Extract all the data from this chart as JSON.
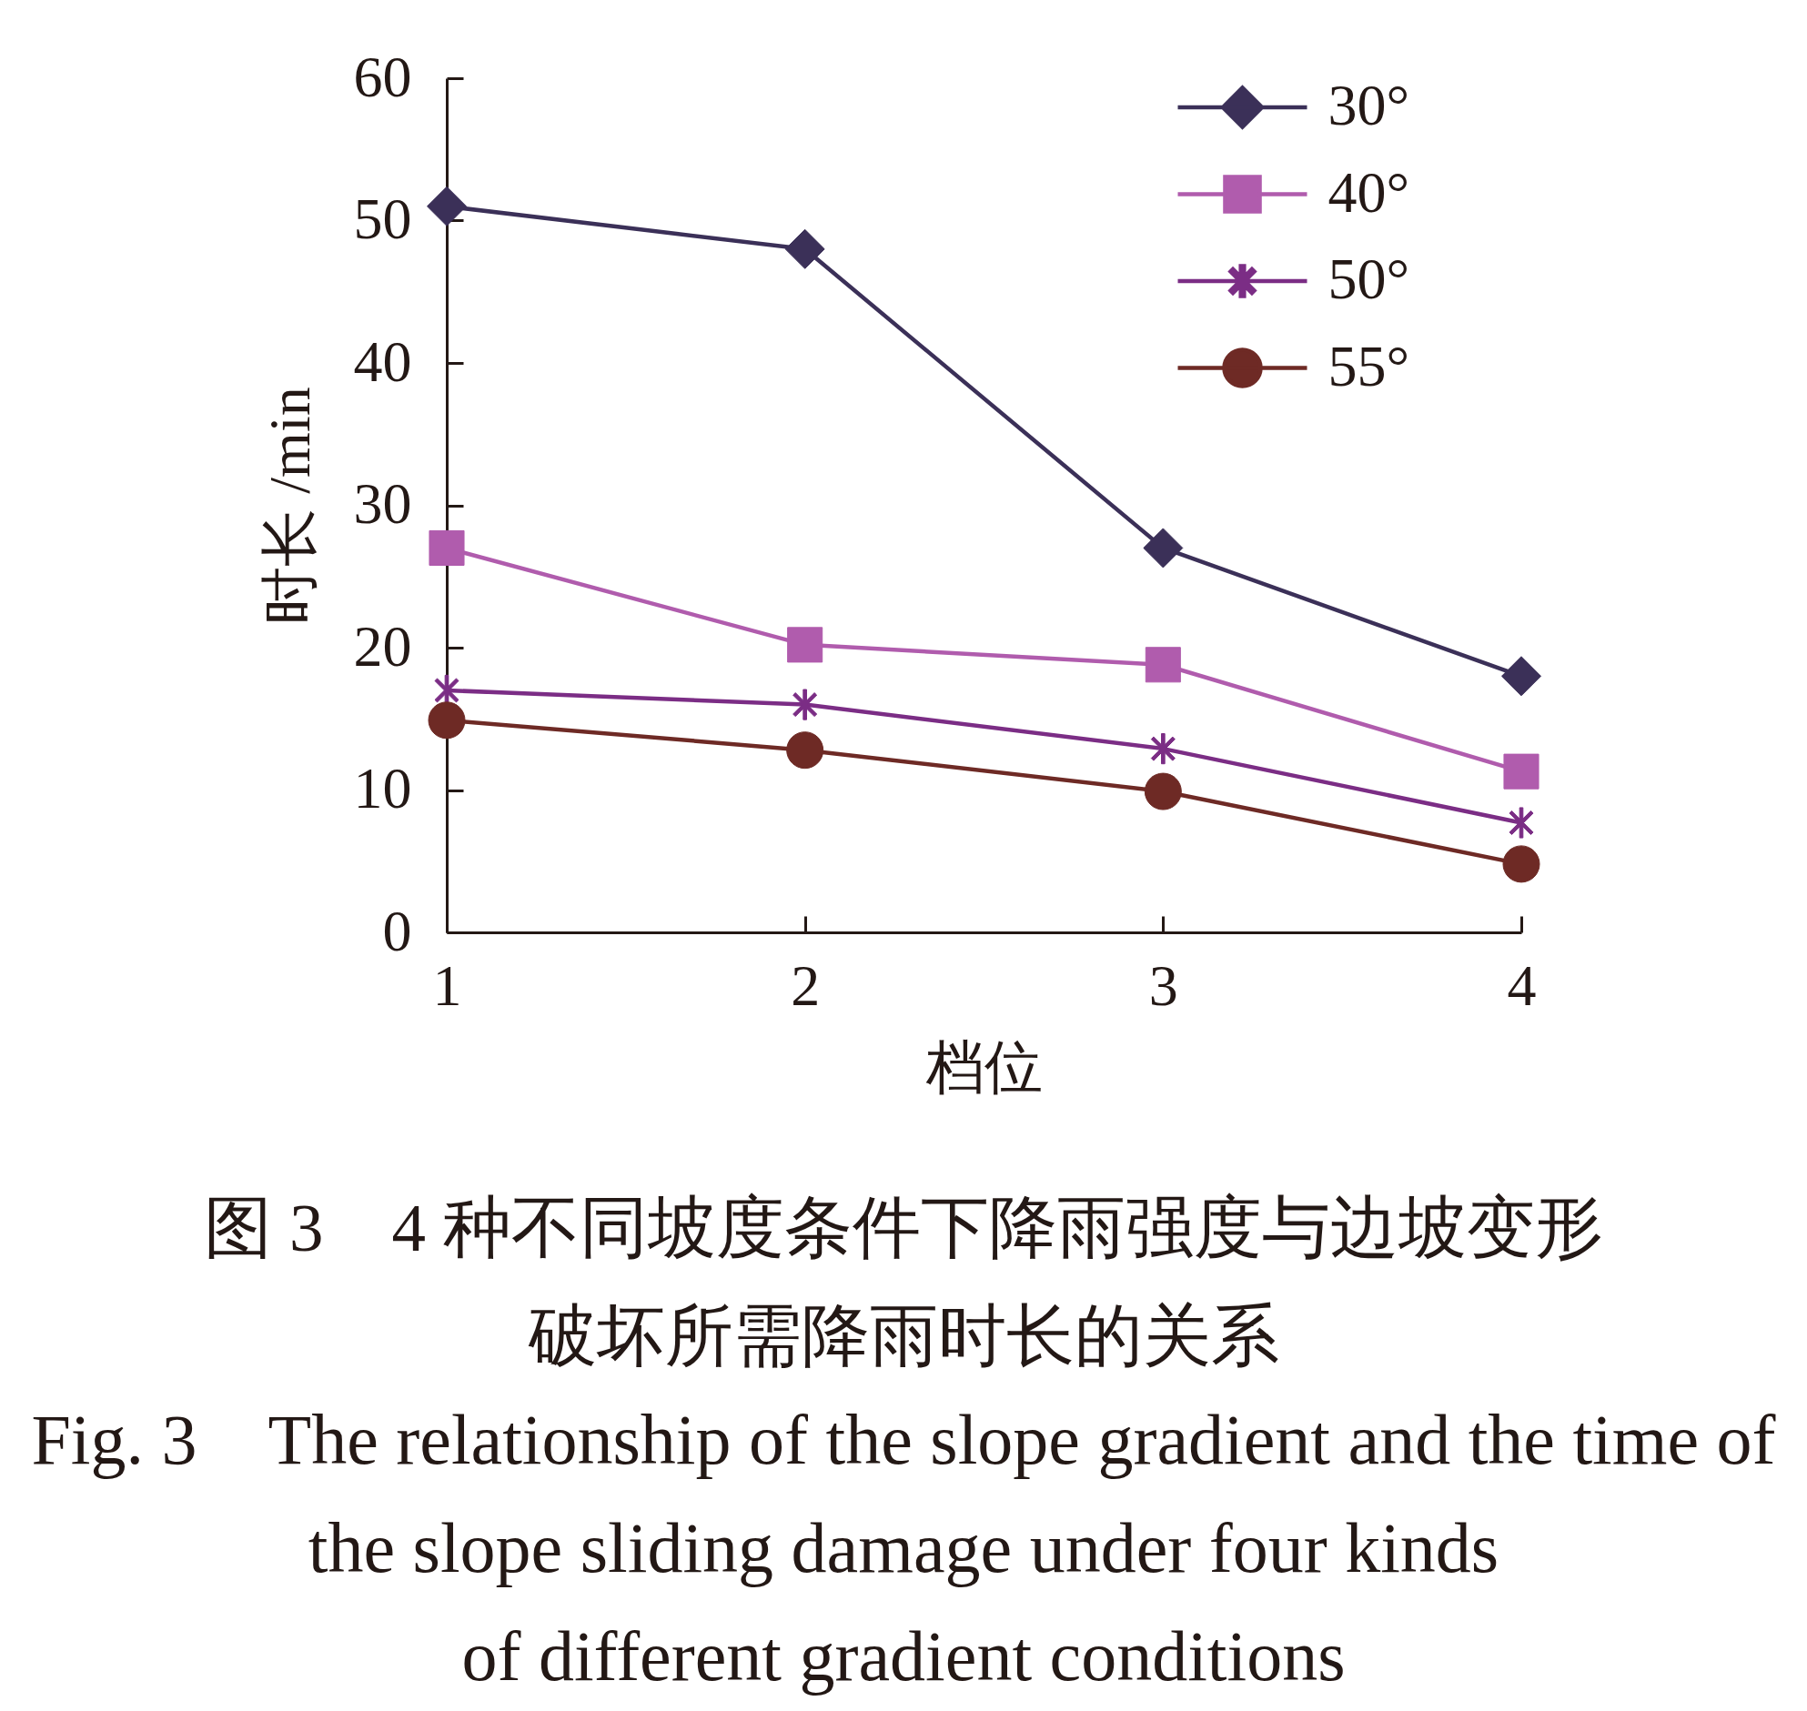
{
  "chart_data": {
    "type": "line",
    "xlabel": "档位",
    "ylabel": "时长 /min",
    "x": [
      1,
      2,
      3,
      4
    ],
    "xlim": [
      1,
      4
    ],
    "xticks": [
      1,
      2,
      3,
      4
    ],
    "ylim": [
      0,
      60
    ],
    "yticks": [
      0,
      10,
      20,
      30,
      40,
      50,
      60
    ],
    "legend": "top right",
    "series": [
      {
        "name": "30°",
        "color": "#3b3058",
        "marker": "diamond",
        "values": [
          51,
          48,
          27,
          18
        ]
      },
      {
        "name": "40°",
        "color": "#b05cad",
        "marker": "square",
        "values": [
          27,
          20.2,
          18.8,
          11.3
        ]
      },
      {
        "name": "50°",
        "color": "#7b2d85",
        "marker": "cross",
        "values": [
          17,
          16,
          12.9,
          7.7
        ]
      },
      {
        "name": "55°",
        "color": "#6e2a25",
        "marker": "circle",
        "values": [
          14.9,
          12.8,
          9.9,
          4.8
        ]
      }
    ],
    "annotations": [
      "图 3　4 种不同坡度条件下降雨强度与边坡变形破坏所需降雨时长的关系",
      "Fig. 3　The relationship of the slope gradient and the time of\nthe slope sliding damage under four kinds\nof different gradient conditions"
    ]
  }
}
